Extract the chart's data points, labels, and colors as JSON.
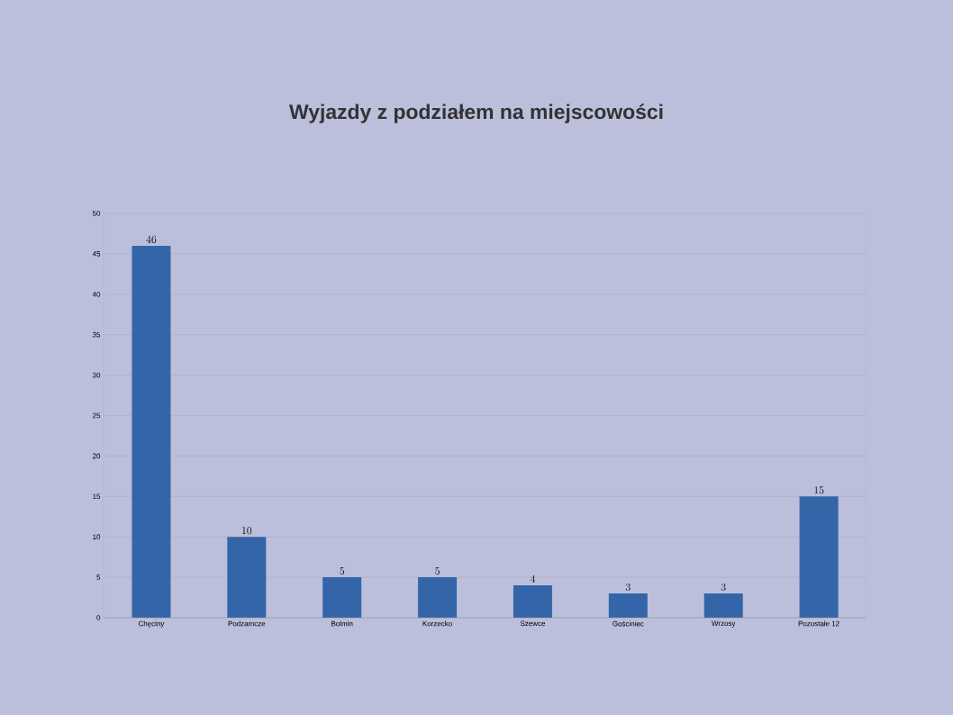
{
  "chart_data": {
    "type": "bar",
    "title": "Wyjazdy z podziałem na miejscowości",
    "categories": [
      "Chęciny",
      "Podzamcze",
      "Bolmin",
      "Korzecko",
      "Szewce",
      "Gościniec",
      "Wrzosy",
      "Pozostałe 12"
    ],
    "values": [
      46,
      10,
      5,
      5,
      4,
      3,
      3,
      15
    ],
    "color": "#3465a8",
    "ylim": [
      0,
      50
    ],
    "yticks": [
      0,
      5,
      10,
      15,
      20,
      25,
      30,
      35,
      40,
      45,
      50
    ],
    "grid": "y",
    "data_labels": true
  }
}
